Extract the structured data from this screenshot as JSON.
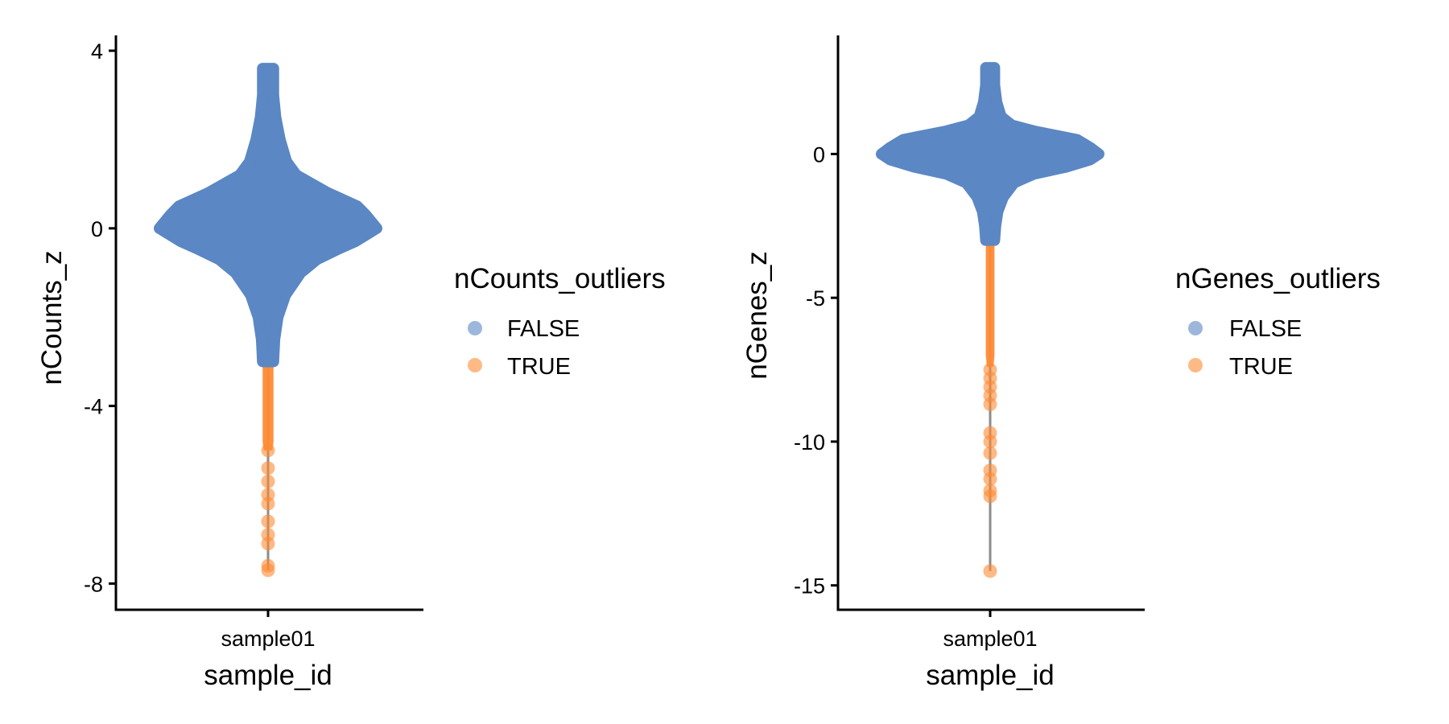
{
  "chart_data": [
    {
      "type": "violin-scatter",
      "xlabel": "sample_id",
      "ylabel": "nCounts_z",
      "categories": [
        "sample01"
      ],
      "ylim": [
        -8.3,
        4.2
      ],
      "yticks": [
        4,
        0,
        -4,
        -8
      ],
      "ytick_labels": [
        "4",
        "0",
        "-4",
        "-8"
      ],
      "legend": {
        "title": "nCounts_outliers",
        "placement": "right",
        "entries": [
          {
            "label": "FALSE",
            "color": "#5b87c4"
          },
          {
            "label": "TRUE",
            "color": "#ff8a33"
          }
        ]
      },
      "series": [
        {
          "name": "FALSE",
          "color": "#5b87c4",
          "range": [
            -3.0,
            3.6
          ]
        },
        {
          "name": "TRUE",
          "color": "#ff8a33",
          "range": [
            -7.7,
            -3.0
          ],
          "isolated_points": [
            -5.0,
            -5.4,
            -5.7,
            -6.0,
            -6.2,
            -6.6,
            -6.9,
            -7.1,
            -7.6,
            -7.7
          ]
        }
      ],
      "profile": [
        [
          3.6,
          0.05
        ],
        [
          3.0,
          0.05
        ],
        [
          2.5,
          0.07
        ],
        [
          2.0,
          0.11
        ],
        [
          1.5,
          0.17
        ],
        [
          1.2,
          0.26
        ],
        [
          0.8,
          0.55
        ],
        [
          0.5,
          0.82
        ],
        [
          0.3,
          0.9
        ],
        [
          0.15,
          0.95
        ],
        [
          0.0,
          1.0
        ],
        [
          -0.15,
          0.9
        ],
        [
          -0.3,
          0.8
        ],
        [
          -0.45,
          0.66
        ],
        [
          -0.7,
          0.45
        ],
        [
          -1.0,
          0.3
        ],
        [
          -1.5,
          0.16
        ],
        [
          -2.0,
          0.09
        ],
        [
          -2.5,
          0.06
        ],
        [
          -3.0,
          0.05
        ]
      ],
      "outlier_profile": [
        [
          -3.0,
          0.05
        ],
        [
          -4.8,
          0.05
        ],
        [
          -5.0,
          0.04
        ]
      ]
    },
    {
      "type": "violin-scatter",
      "xlabel": "sample_id",
      "ylabel": "nGenes_z",
      "categories": [
        "sample01"
      ],
      "ylim": [
        -15.4,
        3.9
      ],
      "yticks": [
        0,
        -5,
        -10,
        -15
      ],
      "ytick_labels": [
        "0",
        "-5",
        "-10",
        "-15"
      ],
      "legend": {
        "title": "nGenes_outliers",
        "placement": "right",
        "entries": [
          {
            "label": "FALSE",
            "color": "#5b87c4"
          },
          {
            "label": "TRUE",
            "color": "#ff8a33"
          }
        ]
      },
      "series": [
        {
          "name": "FALSE",
          "color": "#5b87c4",
          "range": [
            -3.0,
            3.0
          ]
        },
        {
          "name": "TRUE",
          "color": "#ff8a33",
          "range": [
            -14.5,
            -3.0
          ],
          "isolated_points": [
            -7.5,
            -7.8,
            -8.1,
            -8.4,
            -8.7,
            -9.7,
            -10.0,
            -10.4,
            -11.0,
            -11.3,
            -11.7,
            -11.9,
            -14.5
          ]
        }
      ],
      "profile": [
        [
          3.0,
          0.04
        ],
        [
          2.4,
          0.04
        ],
        [
          1.8,
          0.06
        ],
        [
          1.3,
          0.1
        ],
        [
          1.0,
          0.2
        ],
        [
          0.8,
          0.4
        ],
        [
          0.5,
          0.8
        ],
        [
          0.2,
          0.93
        ],
        [
          0.0,
          1.0
        ],
        [
          -0.2,
          0.92
        ],
        [
          -0.45,
          0.7
        ],
        [
          -0.7,
          0.4
        ],
        [
          -1.0,
          0.22
        ],
        [
          -1.5,
          0.12
        ],
        [
          -2.0,
          0.07
        ],
        [
          -2.5,
          0.05
        ],
        [
          -3.0,
          0.04
        ]
      ],
      "outlier_profile": [
        [
          -3.0,
          0.04
        ],
        [
          -7.0,
          0.04
        ],
        [
          -7.4,
          0.03
        ]
      ]
    }
  ]
}
